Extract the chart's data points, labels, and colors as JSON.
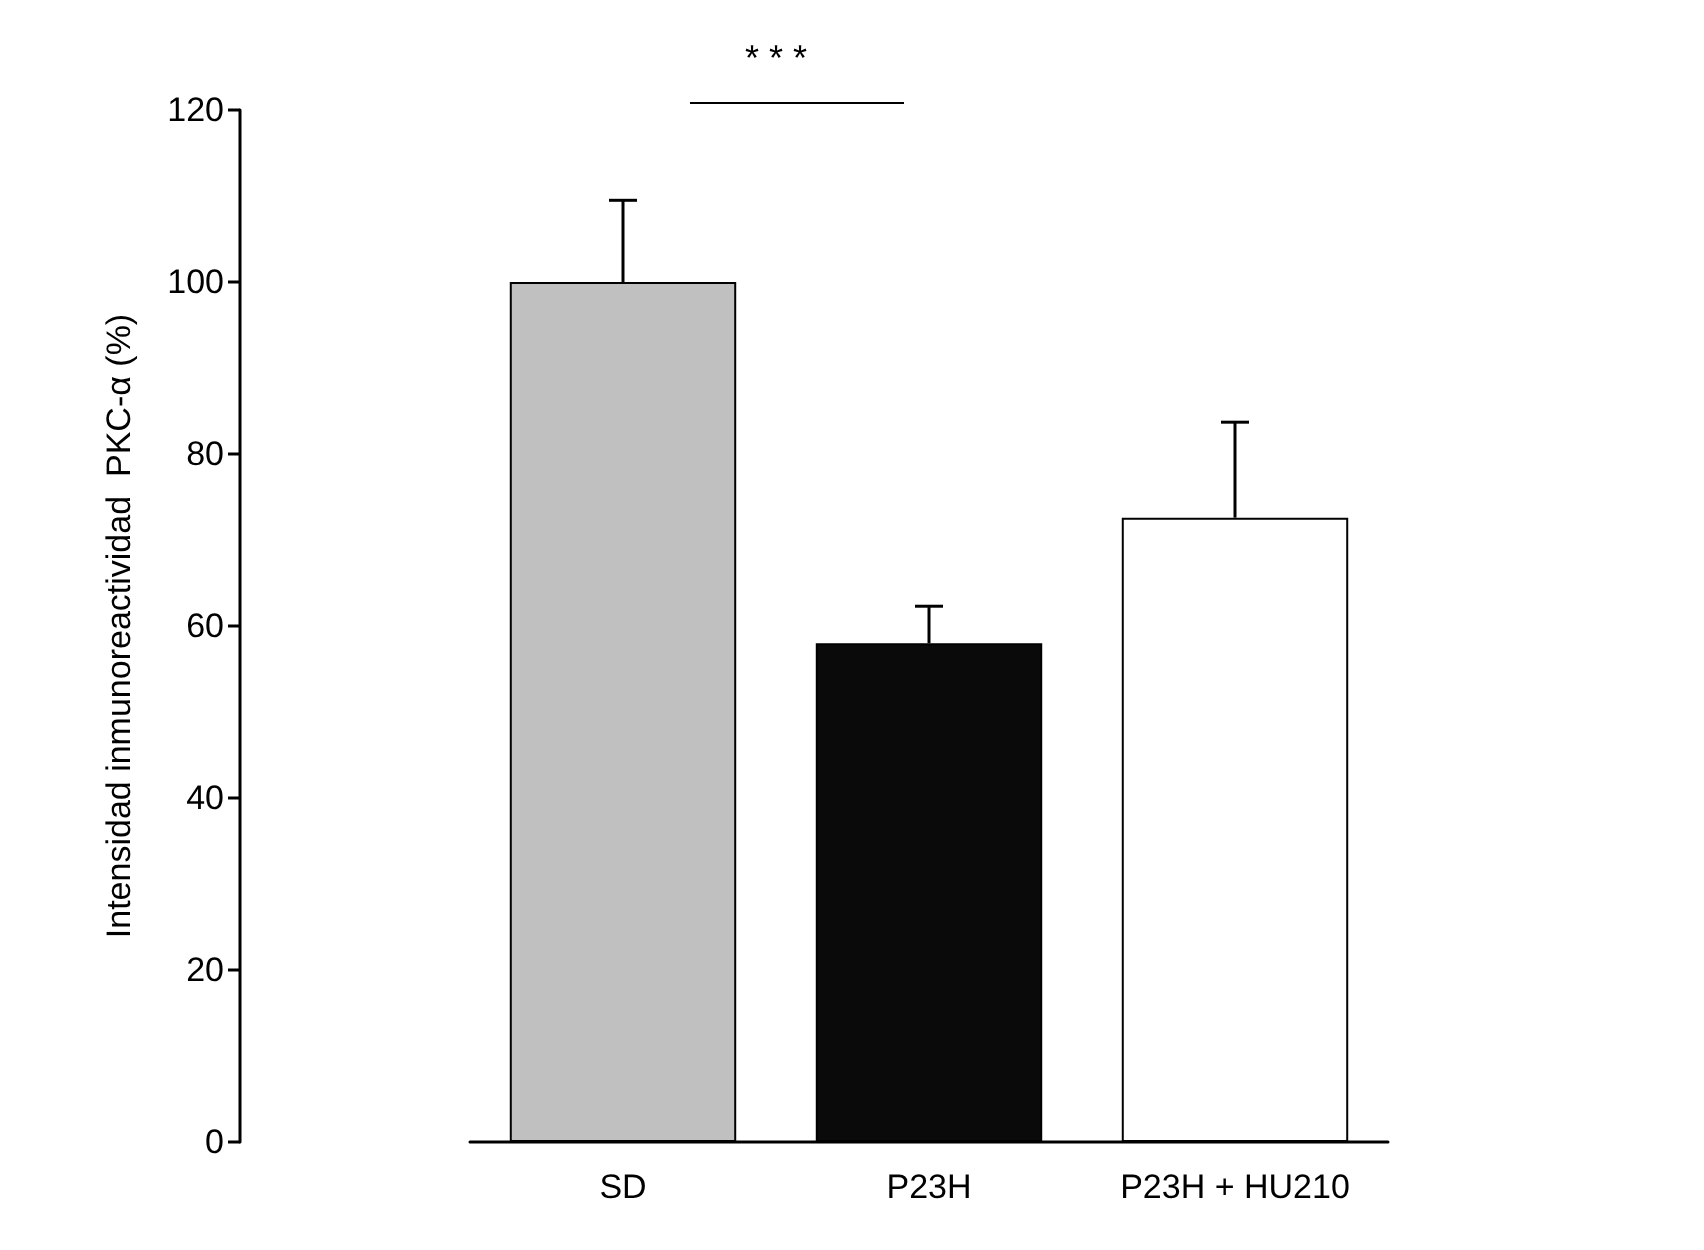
{
  "chart_data": {
    "type": "bar",
    "ylabel": "Intensidad inmunoreactividad  PKC-α (%)",
    "categories": [
      "SD",
      "P23H",
      "P23H + HU210"
    ],
    "values": [
      100,
      58,
      72.6
    ],
    "colors": [
      "#c0c0c0",
      "#0a0a0a",
      "#ffffff"
    ],
    "errors": [
      [
        100,
        109.5
      ],
      [
        58,
        62.3
      ],
      [
        72.6,
        83.7
      ]
    ],
    "ylim": [
      0,
      120
    ],
    "yticks": [
      0,
      20,
      40,
      60,
      80,
      100,
      120
    ],
    "annotations": [
      "* * *"
    ]
  }
}
